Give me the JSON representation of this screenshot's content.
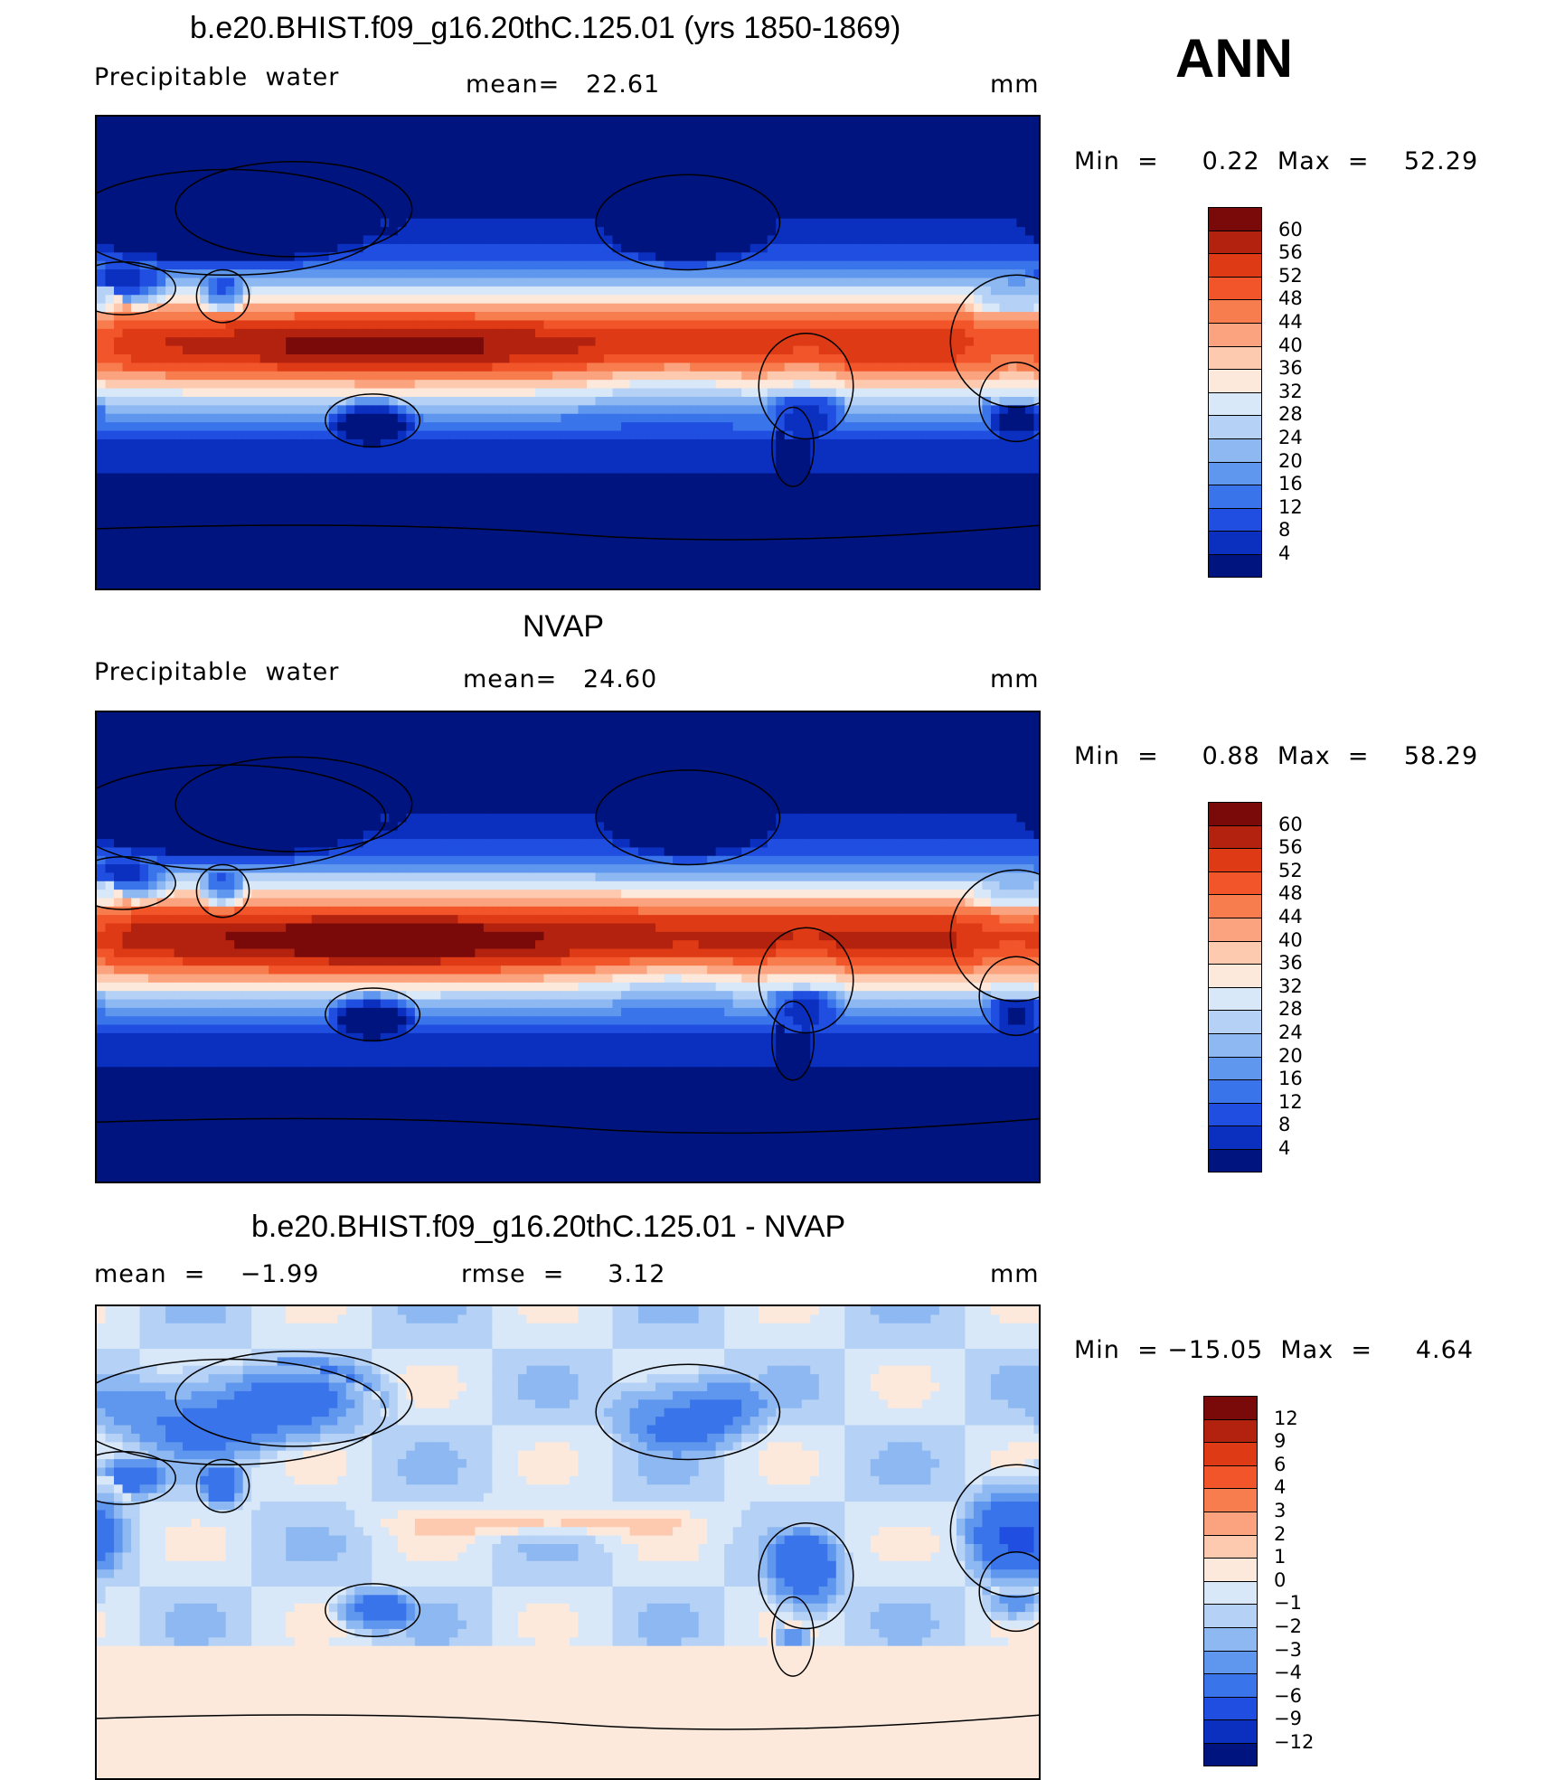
{
  "season": "ANN",
  "panels": [
    {
      "title": "b.e20.BHIST.f09_g16.20thC.125.01 (yrs 1850-1869)",
      "left_label": "Precipitable  water",
      "mid_label": "mean=   22.61",
      "units": "mm",
      "minmax": "Min  =     0.22  Max  =    52.29",
      "colorbar": {
        "labels": [
          "60",
          "56",
          "52",
          "48",
          "44",
          "40",
          "36",
          "32",
          "28",
          "24",
          "20",
          "16",
          "12",
          "8",
          "4"
        ],
        "colors": [
          "#7a0a0a",
          "#b3220f",
          "#de3a16",
          "#f2552a",
          "#f77c4e",
          "#fba37e",
          "#fdcab0",
          "#fde9dc",
          "#d8e8f8",
          "#b5d1f5",
          "#8db8f2",
          "#5f96ee",
          "#3a74ea",
          "#1f4ee0",
          "#0b2fbf",
          "#001480"
        ]
      },
      "field": "model"
    },
    {
      "title": "NVAP",
      "left_label": "Precipitable  water",
      "mid_label": "mean=   24.60",
      "units": "mm",
      "minmax": "Min  =     0.88  Max  =    58.29",
      "colorbar": {
        "labels": [
          "60",
          "56",
          "52",
          "48",
          "44",
          "40",
          "36",
          "32",
          "28",
          "24",
          "20",
          "16",
          "12",
          "8",
          "4"
        ],
        "colors": [
          "#7a0a0a",
          "#b3220f",
          "#de3a16",
          "#f2552a",
          "#f77c4e",
          "#fba37e",
          "#fdcab0",
          "#fde9dc",
          "#d8e8f8",
          "#b5d1f5",
          "#8db8f2",
          "#5f96ee",
          "#3a74ea",
          "#1f4ee0",
          "#0b2fbf",
          "#001480"
        ]
      },
      "field": "obs"
    },
    {
      "title": "b.e20.BHIST.f09_g16.20thC.125.01 - NVAP",
      "left_label": "mean  =    −1.99",
      "mid_label": "rmse  =     3.12",
      "units": "mm",
      "minmax": "Min  = −15.05  Max  =     4.64",
      "colorbar": {
        "labels": [
          "12",
          "9",
          "6",
          "4",
          "3",
          "2",
          "1",
          "0",
          "−1",
          "−2",
          "−3",
          "−4",
          "−6",
          "−9",
          "−12"
        ],
        "colors": [
          "#7a0a0a",
          "#b3220f",
          "#de3a16",
          "#f2552a",
          "#f77c4e",
          "#fba37e",
          "#fdcab0",
          "#fde9dc",
          "#d8e8f8",
          "#b5d1f5",
          "#8db8f2",
          "#5f96ee",
          "#3a74ea",
          "#1f4ee0",
          "#0b2fbf",
          "#001480"
        ]
      },
      "field": "diff"
    }
  ],
  "chart_data": [
    {
      "type": "heatmap",
      "title": "b.e20.BHIST.f09_g16.20thC.125.01 (yrs 1850-1869)",
      "variable": "Precipitable water",
      "units": "mm",
      "mean": 22.61,
      "min": 0.22,
      "max": 52.29,
      "levels": [
        4,
        8,
        12,
        16,
        20,
        24,
        28,
        32,
        36,
        40,
        44,
        48,
        52,
        56,
        60
      ]
    },
    {
      "type": "heatmap",
      "title": "NVAP",
      "variable": "Precipitable water",
      "units": "mm",
      "mean": 24.6,
      "min": 0.88,
      "max": 58.29,
      "levels": [
        4,
        8,
        12,
        16,
        20,
        24,
        28,
        32,
        36,
        40,
        44,
        48,
        52,
        56,
        60
      ]
    },
    {
      "type": "heatmap",
      "title": "b.e20.BHIST.f09_g16.20thC.125.01 - NVAP",
      "units": "mm",
      "mean": -1.99,
      "rmse": 3.12,
      "min": -15.05,
      "max": 4.64,
      "levels": [
        -12,
        -9,
        -6,
        -4,
        -3,
        -2,
        -1,
        0,
        1,
        2,
        3,
        4,
        6,
        9,
        12
      ]
    }
  ]
}
